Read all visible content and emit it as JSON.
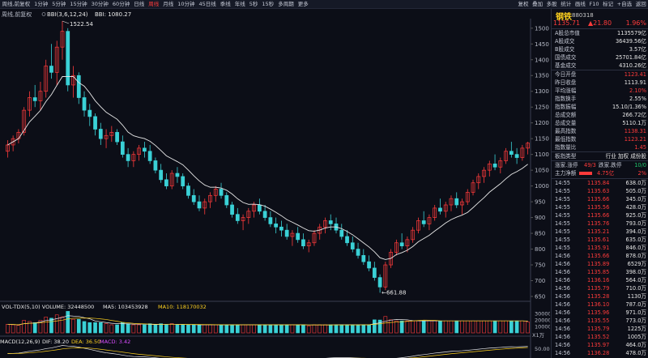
{
  "toolbar": {
    "timeframes": [
      {
        "label": "周线,前复权",
        "active": false
      },
      {
        "label": "1分钟",
        "active": false
      },
      {
        "label": "5分钟",
        "active": false
      },
      {
        "label": "15分钟",
        "active": false
      },
      {
        "label": "30分钟",
        "active": false
      },
      {
        "label": "60分钟",
        "active": false
      },
      {
        "label": "日线",
        "active": false
      },
      {
        "label": "周线",
        "active": true
      },
      {
        "label": "月线",
        "active": false
      },
      {
        "label": "10分钟",
        "active": false
      },
      {
        "label": "45日线",
        "active": false
      },
      {
        "label": "季线",
        "active": false
      },
      {
        "label": "年线",
        "active": false
      },
      {
        "label": "5秒",
        "active": false
      },
      {
        "label": "15秒",
        "active": false
      },
      {
        "label": "多周期",
        "active": false
      },
      {
        "label": "更多",
        "active": false
      }
    ],
    "tools": [
      "复权",
      "叠加",
      "多股",
      "统计",
      "画线",
      "F10",
      "标记",
      "+自选",
      "返回"
    ]
  },
  "chart": {
    "indicator_label": "周线,前复权",
    "bbi_params": "BBI(3,6,12,24)",
    "bbi_value": "BBI: 1080.27",
    "high_label": "1522.54",
    "low_label": "661.88",
    "price_axis": [
      "1500",
      "1450",
      "1400",
      "1350",
      "1300",
      "1250",
      "1200",
      "1150",
      "1100",
      "1050",
      "1000",
      "950",
      "900",
      "850",
      "800",
      "750",
      "700",
      "650"
    ],
    "volume_title": "VOL-TDX(5,10) VOLUME: 32448500",
    "ma5_label": "MA5: 103453928",
    "ma10_label": "MA10: 118170032",
    "volume_axis": [
      "30000",
      "20000",
      "10000"
    ],
    "volume_unit": "X1万",
    "macd_title": "MACD(12,26,9)",
    "dif_label": "DIF: 38.20",
    "dea_label": "DEA: 36.50",
    "macd_label": "MACD: 3.42",
    "macd_axis": [
      "50.00"
    ]
  },
  "chart_data": {
    "type": "candlestick",
    "series": [
      {
        "name": "周线",
        "ohlc": [
          [
            1110,
            1145,
            1090,
            1130
          ],
          [
            1130,
            1160,
            1110,
            1150
          ],
          [
            1150,
            1180,
            1135,
            1170
          ],
          [
            1170,
            1250,
            1160,
            1240
          ],
          [
            1240,
            1300,
            1220,
            1280
          ],
          [
            1280,
            1320,
            1250,
            1270
          ],
          [
            1270,
            1330,
            1240,
            1300
          ],
          [
            1300,
            1400,
            1280,
            1380
          ],
          [
            1380,
            1450,
            1340,
            1360
          ],
          [
            1360,
            1460,
            1320,
            1440
          ],
          [
            1440,
            1522.54,
            1400,
            1490
          ],
          [
            1490,
            1500,
            1300,
            1320
          ],
          [
            1320,
            1380,
            1280,
            1350
          ],
          [
            1350,
            1360,
            1260,
            1280
          ],
          [
            1280,
            1300,
            1220,
            1240
          ],
          [
            1240,
            1260,
            1190,
            1220
          ],
          [
            1220,
            1230,
            1160,
            1180
          ],
          [
            1180,
            1200,
            1130,
            1150
          ],
          [
            1150,
            1180,
            1120,
            1160
          ],
          [
            1160,
            1190,
            1140,
            1170
          ],
          [
            1170,
            1180,
            1130,
            1140
          ],
          [
            1140,
            1160,
            1090,
            1100
          ],
          [
            1100,
            1120,
            1060,
            1080
          ],
          [
            1080,
            1110,
            1060,
            1100
          ],
          [
            1100,
            1130,
            1080,
            1120
          ],
          [
            1120,
            1140,
            1090,
            1110
          ],
          [
            1110,
            1130,
            1070,
            1080
          ],
          [
            1080,
            1090,
            1040,
            1050
          ],
          [
            1050,
            1070,
            1010,
            1020
          ],
          [
            1020,
            1040,
            990,
            1000
          ],
          [
            1000,
            1050,
            990,
            1040
          ],
          [
            1040,
            1060,
            1010,
            1030
          ],
          [
            1030,
            1040,
            990,
            1000
          ],
          [
            1000,
            1010,
            960,
            970
          ],
          [
            970,
            990,
            940,
            950
          ],
          [
            950,
            970,
            920,
            930
          ],
          [
            930,
            960,
            910,
            950
          ],
          [
            950,
            980,
            930,
            970
          ],
          [
            970,
            1000,
            950,
            990
          ],
          [
            990,
            1010,
            960,
            970
          ],
          [
            970,
            980,
            930,
            940
          ],
          [
            940,
            950,
            900,
            910
          ],
          [
            910,
            930,
            880,
            890
          ],
          [
            890,
            910,
            860,
            900
          ],
          [
            900,
            930,
            880,
            920
          ],
          [
            920,
            950,
            900,
            940
          ],
          [
            940,
            960,
            910,
            920
          ],
          [
            920,
            940,
            890,
            900
          ],
          [
            900,
            920,
            870,
            880
          ],
          [
            880,
            900,
            850,
            870
          ],
          [
            870,
            890,
            840,
            860
          ],
          [
            860,
            880,
            830,
            840
          ],
          [
            840,
            860,
            810,
            850
          ],
          [
            850,
            870,
            820,
            830
          ],
          [
            830,
            850,
            800,
            810
          ],
          [
            810,
            830,
            790,
            820
          ],
          [
            820,
            860,
            810,
            850
          ],
          [
            850,
            880,
            830,
            870
          ],
          [
            870,
            900,
            850,
            890
          ],
          [
            890,
            910,
            860,
            880
          ],
          [
            880,
            900,
            850,
            860
          ],
          [
            860,
            880,
            830,
            840
          ],
          [
            840,
            860,
            810,
            820
          ],
          [
            820,
            840,
            790,
            800
          ],
          [
            800,
            820,
            770,
            780
          ],
          [
            780,
            800,
            750,
            760
          ],
          [
            760,
            780,
            730,
            740
          ],
          [
            740,
            760,
            700,
            710
          ],
          [
            710,
            720,
            661.88,
            680
          ],
          [
            680,
            760,
            670,
            750
          ],
          [
            750,
            800,
            740,
            790
          ],
          [
            790,
            830,
            780,
            820
          ],
          [
            820,
            850,
            800,
            810
          ],
          [
            810,
            840,
            790,
            830
          ],
          [
            830,
            870,
            820,
            860
          ],
          [
            860,
            900,
            850,
            890
          ],
          [
            890,
            920,
            870,
            880
          ],
          [
            880,
            910,
            860,
            900
          ],
          [
            900,
            940,
            890,
            930
          ],
          [
            930,
            960,
            910,
            920
          ],
          [
            920,
            950,
            900,
            940
          ],
          [
            940,
            970,
            920,
            960
          ],
          [
            960,
            980,
            930,
            940
          ],
          [
            940,
            960,
            910,
            950
          ],
          [
            950,
            990,
            940,
            980
          ],
          [
            980,
            1020,
            970,
            1010
          ],
          [
            1010,
            1040,
            990,
            1030
          ],
          [
            1030,
            1060,
            1010,
            1050
          ],
          [
            1050,
            1080,
            1030,
            1070
          ],
          [
            1070,
            1100,
            1050,
            1060
          ],
          [
            1060,
            1090,
            1040,
            1080
          ],
          [
            1080,
            1120,
            1070,
            1110
          ],
          [
            1110,
            1140,
            1090,
            1100
          ],
          [
            1100,
            1120,
            1070,
            1090
          ],
          [
            1090,
            1130,
            1080,
            1120
          ],
          [
            1120,
            1140,
            1100,
            1135.71
          ]
        ]
      }
    ],
    "ylim": [
      650,
      1520
    ],
    "volume_ylim": [
      0,
      35000
    ],
    "colors": {
      "up": "#ff3b3b",
      "down": "#3ad1d6",
      "bbi": "#e8e8e8",
      "ma5": "#e8e8e8",
      "ma10": "#ffd21f",
      "dif": "#e8e8e8",
      "dea": "#ffd21f",
      "macd": "#d94dff"
    }
  },
  "panel": {
    "name": "钢铁",
    "code": "880318",
    "price": "1135.71",
    "change": "▲21.80",
    "pct": "1.96%",
    "stats": [
      {
        "label": "A股总市值",
        "value": "1135579亿",
        "color": "white"
      },
      {
        "label": "A股成交",
        "value": "36439.56亿",
        "color": "white"
      },
      {
        "label": "B股成交",
        "value": "3.57亿",
        "color": "white"
      },
      {
        "label": "国债成交",
        "value": "25701.84亿",
        "color": "white"
      },
      {
        "label": "基金成交",
        "value": "4310.26亿",
        "color": "white"
      },
      {
        "label": "今日开盘",
        "value": "1123.41",
        "color": "red"
      },
      {
        "label": "昨日收盘",
        "value": "1113.91",
        "color": "white"
      },
      {
        "label": "平均涨幅",
        "value": "2.10%",
        "color": "red"
      },
      {
        "label": "指数换手",
        "value": "2.55%",
        "color": "white"
      },
      {
        "label": "指数振幅",
        "value": "15.10/1.36%",
        "color": "white"
      },
      {
        "label": "总成交额",
        "value": "266.72亿",
        "color": "white"
      },
      {
        "label": "总成交量",
        "value": "5110.1万",
        "color": "white"
      },
      {
        "label": "最高指数",
        "value": "1138.31",
        "color": "red"
      },
      {
        "label": "最低指数",
        "value": "1123.21",
        "color": "red"
      },
      {
        "label": "指数量比",
        "value": "1.45",
        "color": "red"
      },
      {
        "label": "板指类型",
        "value": "行业 加权 成份股",
        "color": "white"
      }
    ],
    "updown": {
      "label": "涨家.涨停",
      "value": "49/3",
      "label2": "跌家.跌停",
      "value2": "10/0"
    },
    "mainflow": {
      "label": "主力净额",
      "value": "4.75亿",
      "pct": "2%"
    },
    "trades": [
      {
        "time": "14:55",
        "price": "1135.84",
        "vol": "638.0万"
      },
      {
        "time": "14:55",
        "price": "1135.63",
        "vol": "505.0万"
      },
      {
        "time": "14:55",
        "price": "1135.66",
        "vol": "345.0万"
      },
      {
        "time": "14:55",
        "price": "1135.56",
        "vol": "428.0万"
      },
      {
        "time": "14:55",
        "price": "1135.66",
        "vol": "925.0万"
      },
      {
        "time": "14:55",
        "price": "1135.76",
        "vol": "793.0万"
      },
      {
        "time": "14:55",
        "price": "1135.21",
        "vol": "394.0万"
      },
      {
        "time": "14:55",
        "price": "1135.61",
        "vol": "635.0万"
      },
      {
        "time": "14:55",
        "price": "1135.91",
        "vol": "846.0万"
      },
      {
        "time": "14:56",
        "price": "1135.66",
        "vol": "878.0万"
      },
      {
        "time": "14:56",
        "price": "1135.89",
        "vol": "6529万"
      },
      {
        "time": "14:56",
        "price": "1135.85",
        "vol": "398.0万"
      },
      {
        "time": "14:56",
        "price": "1136.16",
        "vol": "564.0万"
      },
      {
        "time": "14:56",
        "price": "1135.79",
        "vol": "710.0万"
      },
      {
        "time": "14:56",
        "price": "1135.28",
        "vol": "1130万"
      },
      {
        "time": "14:56",
        "price": "1136.10",
        "vol": "787.0万"
      },
      {
        "time": "14:56",
        "price": "1135.96",
        "vol": "971.0万"
      },
      {
        "time": "14:56",
        "price": "1135.55",
        "vol": "773.0万"
      },
      {
        "time": "14:56",
        "price": "1135.79",
        "vol": "1225万"
      },
      {
        "time": "14:56",
        "price": "1135.52",
        "vol": "1005万"
      },
      {
        "time": "14:56",
        "price": "1135.97",
        "vol": "464.0万"
      },
      {
        "time": "14:56",
        "price": "1136.28",
        "vol": "478.0万"
      }
    ]
  }
}
